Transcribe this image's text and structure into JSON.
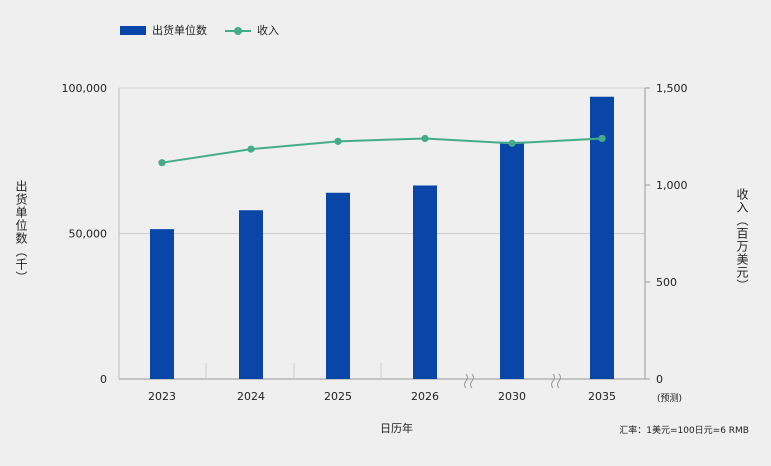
{
  "legend": {
    "bars": "出货单位数",
    "line": "收入"
  },
  "y_left_label": "出货单位数（千）",
  "y_right_label": "收入（百万美元）",
  "x_label": "日历年",
  "forecast_note": "(预测)",
  "exchange_note": "汇率：1美元=100日元=6 RMB",
  "colors": {
    "bar": "#0a46a8",
    "line": "#44ad88",
    "background": "#efefef"
  },
  "chart_data": {
    "type": "bar",
    "categories": [
      "2023",
      "2024",
      "2025",
      "2026",
      "2030",
      "2035"
    ],
    "axis_breaks": [
      "2026-2030",
      "2030-2035"
    ],
    "series": [
      {
        "name": "出货单位数",
        "type": "bar",
        "axis": "left",
        "values": [
          51500,
          58000,
          64000,
          66500,
          81500,
          97000
        ]
      },
      {
        "name": "收入",
        "type": "line",
        "axis": "right",
        "values": [
          1115,
          1185,
          1225,
          1240,
          1215,
          1240
        ]
      }
    ],
    "y_left": {
      "ticks": [
        "0",
        "50,000",
        "100,000"
      ],
      "range": [
        0,
        100000
      ]
    },
    "y_right": {
      "ticks": [
        "0",
        "500",
        "1,000",
        "1,500"
      ],
      "range": [
        0,
        1500
      ]
    }
  }
}
